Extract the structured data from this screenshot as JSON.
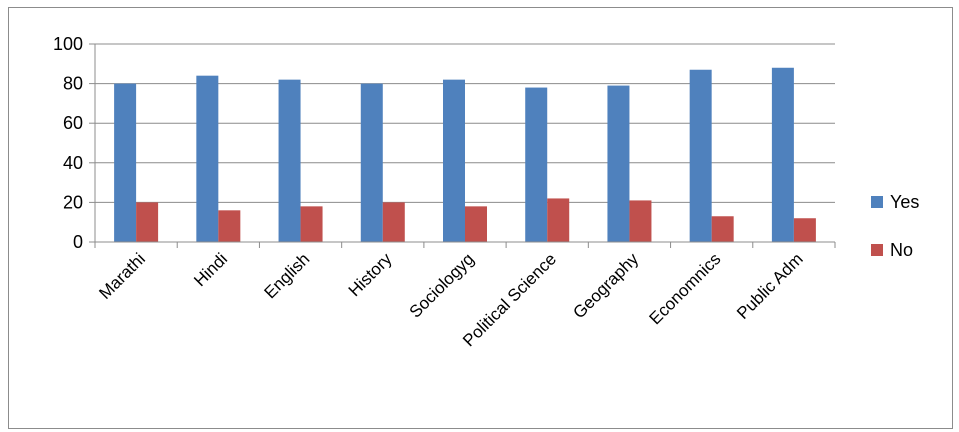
{
  "chart_data": {
    "type": "bar",
    "categories": [
      "Marathi",
      "Hindi",
      "English",
      "History",
      "Sociologyg",
      "Political Science",
      "Geography",
      "Economnics",
      "Public Adm"
    ],
    "series": [
      {
        "name": "Yes",
        "color": "#4f81bd",
        "values": [
          80,
          84,
          82,
          80,
          82,
          78,
          79,
          87,
          88
        ]
      },
      {
        "name": "No",
        "color": "#c0504d",
        "values": [
          20,
          16,
          18,
          20,
          18,
          22,
          21,
          13,
          12
        ]
      }
    ],
    "yticks": [
      "0",
      "20",
      "40",
      "60",
      "80",
      "100"
    ],
    "ylim": [
      0,
      100
    ],
    "grid": true,
    "legend_position": "right"
  }
}
